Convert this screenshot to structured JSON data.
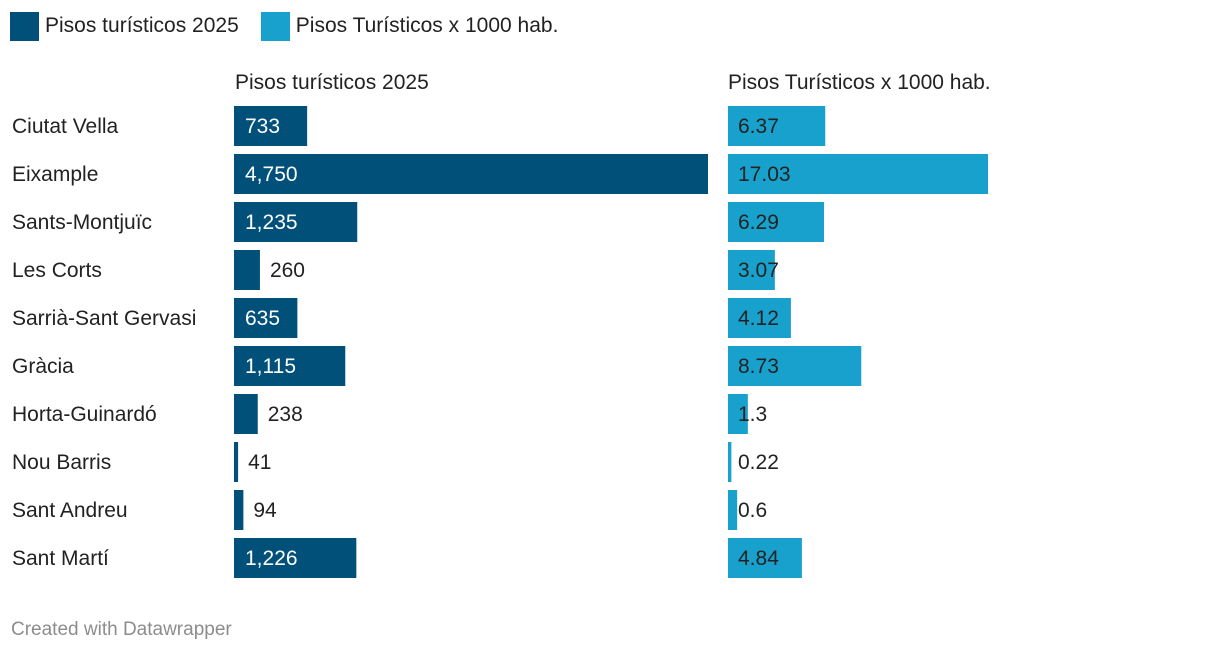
{
  "legend": {
    "items": [
      {
        "label": "Pisos turísticos 2025",
        "color": "#00507a"
      },
      {
        "label": "Pisos Turísticos x 1000 hab.",
        "color": "#18a1cd"
      }
    ]
  },
  "footer": {
    "credit": "Created with Datawrapper"
  },
  "chart_data": {
    "type": "bar",
    "orientation": "horizontal",
    "categories": [
      "Ciutat Vella",
      "Eixample",
      "Sants-Montjuïc",
      "Les Corts",
      "Sarrià-Sant Gervasi",
      "Gràcia",
      "Horta-Guinardó",
      "Nou Barris",
      "Sant Andreu",
      "Sant Martí"
    ],
    "series": [
      {
        "name": "Pisos turísticos 2025",
        "values": [
          733,
          4750,
          1235,
          260,
          635,
          1115,
          238,
          41,
          94,
          1226
        ],
        "labels": [
          "733",
          "4,750",
          "1,235",
          "260",
          "635",
          "1,115",
          "238",
          "41",
          "94",
          "1,226"
        ],
        "color": "#00507a",
        "xlim": [
          0,
          4750
        ]
      },
      {
        "name": "Pisos Turísticos x 1000 hab.",
        "values": [
          6.37,
          17.03,
          6.29,
          3.07,
          4.12,
          8.73,
          1.3,
          0.22,
          0.6,
          4.84
        ],
        "labels": [
          "6.37",
          "17.03",
          "6.29",
          "3.07",
          "4.12",
          "8.73",
          "1.3",
          "0.22",
          "0.6",
          "4.84"
        ],
        "color": "#18a1cd",
        "xlim": [
          0,
          17.03
        ]
      }
    ],
    "grid": false,
    "legend_position": "top-left"
  }
}
